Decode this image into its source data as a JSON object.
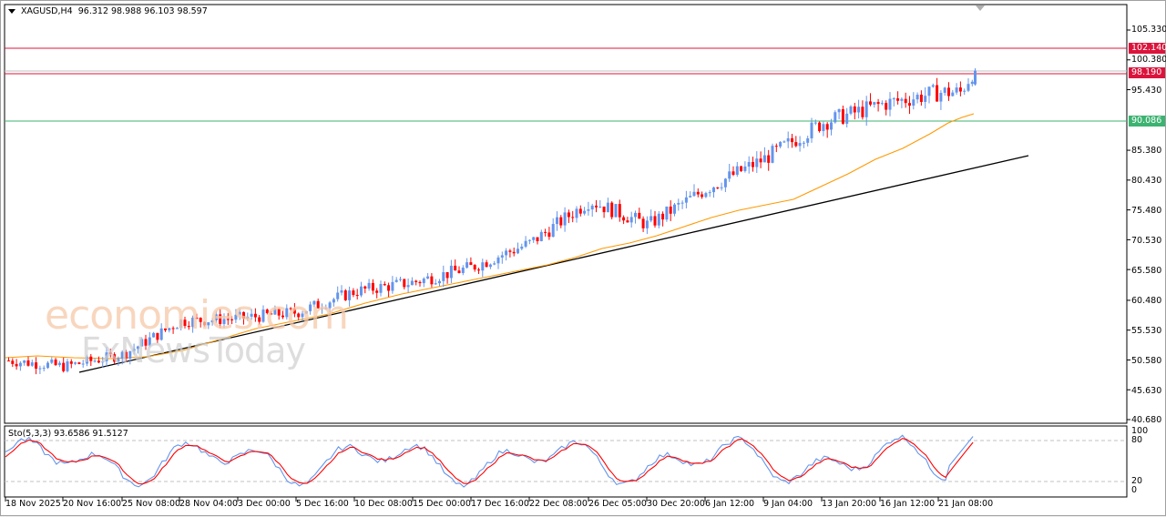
{
  "window": {
    "symbol_timeframe": "XAGUSD,H4",
    "ohlc": "96.312 98.988 96.103 98.597",
    "header_text": "XAGUSD,H4  96.312 98.988 96.103 98.597"
  },
  "price_axis": {
    "ticks": [
      "105.330",
      "100.380",
      "95.430",
      "85.380",
      "80.430",
      "75.480",
      "70.530",
      "65.580",
      "60.480",
      "55.530",
      "50.580",
      "45.630",
      "40.680"
    ],
    "tick_values": [
      105.33,
      100.38,
      95.43,
      85.38,
      80.43,
      75.48,
      70.53,
      65.58,
      60.48,
      55.53,
      50.58,
      45.63,
      40.68
    ]
  },
  "horizontal_lines": [
    {
      "label": "102.140",
      "value": 102.14,
      "color": "#dc143c"
    },
    {
      "label": "98.190",
      "value": 98.19,
      "color": "#dc143c"
    },
    {
      "label": "90.086",
      "value": 90.086,
      "color": "#3cb371"
    }
  ],
  "stochastic": {
    "label": "Sto(5,3,3) 93.6586 91.5127",
    "params": "5,3,3",
    "main": 93.6586,
    "signal": 91.5127,
    "axis_ticks": [
      "100",
      "80",
      "20",
      "0"
    ],
    "main_color": "#6495ed",
    "signal_color": "#ff0000"
  },
  "time_axis": {
    "labels": [
      "18 Nov 2025",
      "20 Nov 16:00",
      "25 Nov 08:00",
      "28 Nov 04:00",
      "3 Dec 00:00",
      "5 Dec 16:00",
      "10 Dec 08:00",
      "15 Dec 00:00",
      "17 Dec 16:00",
      "22 Dec 08:00",
      "26 Dec 05:00",
      "30 Dec 20:00",
      "6 Jan 12:00",
      "9 Jan 04:00",
      "13 Jan 20:00",
      "16 Jan 12:00",
      "21 Jan 08:00"
    ]
  },
  "watermark": {
    "line1": "economies.com",
    "line2": "FxNewsToday"
  },
  "colors": {
    "bull": "#6495ed",
    "bear": "#ff0000",
    "ma": "#ff9900",
    "trendline": "#000000",
    "resistance": "#dc143c",
    "support": "#3cb371"
  },
  "chart_data": {
    "type": "candlestick",
    "title": "XAGUSD,H4",
    "x_labels": [
      "18 Nov 2025",
      "20 Nov 16:00",
      "25 Nov 08:00",
      "28 Nov 04:00",
      "3 Dec 00:00",
      "5 Dec 16:00",
      "10 Dec 08:00",
      "15 Dec 00:00",
      "17 Dec 16:00",
      "22 Dec 08:00",
      "26 Dec 05:00",
      "30 Dec 20:00",
      "6 Jan 12:00",
      "9 Jan 04:00",
      "13 Jan 20:00",
      "16 Jan 12:00",
      "21 Jan 08:00"
    ],
    "ylim": [
      40.68,
      107
    ],
    "last_ohlc": {
      "open": 96.312,
      "high": 98.988,
      "low": 96.103,
      "close": 98.597
    },
    "approx_close_path": [
      {
        "x": "18 Nov 2025",
        "y": 50.5
      },
      {
        "x": "20 Nov 16:00",
        "y": 49.5
      },
      {
        "x": "25 Nov 08:00",
        "y": 51.5
      },
      {
        "x": "28 Nov 04:00",
        "y": 57.0
      },
      {
        "x": "3 Dec 00:00",
        "y": 57.5
      },
      {
        "x": "5 Dec 16:00",
        "y": 58.5
      },
      {
        "x": "10 Dec 08:00",
        "y": 62.0
      },
      {
        "x": "15 Dec 00:00",
        "y": 63.5
      },
      {
        "x": "17 Dec 16:00",
        "y": 66.0
      },
      {
        "x": "22 Dec 08:00",
        "y": 70.0
      },
      {
        "x": "26 Dec 05:00",
        "y": 77.0
      },
      {
        "x": "30 Dec 20:00",
        "y": 73.0
      },
      {
        "x": "6 Jan 12:00",
        "y": 79.0
      },
      {
        "x": "9 Jan 04:00",
        "y": 84.0
      },
      {
        "x": "13 Jan 20:00",
        "y": 90.0
      },
      {
        "x": "16 Jan 12:00",
        "y": 93.0
      },
      {
        "x": "21 Jan 08:00",
        "y": 95.0
      }
    ],
    "levels": [
      102.14,
      98.19,
      90.086
    ],
    "indicators": [
      "Moving Average (orange)",
      "Ascending trendline (black)",
      "Stochastic(5,3,3)"
    ]
  }
}
